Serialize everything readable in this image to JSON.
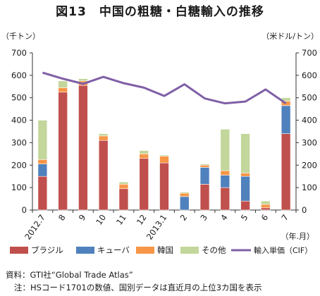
{
  "title": "図13　中国の粗糖・白糖輸入の推移",
  "chart_data": {
    "type": "bar",
    "stacked": true,
    "categories": [
      "2012.7",
      "8",
      "9",
      "10",
      "11",
      "12",
      "2013.1",
      "2",
      "3",
      "4",
      "5",
      "6",
      "7"
    ],
    "x_unit_label": "（年.月）",
    "left_axis": {
      "label": "（千トン）",
      "min": 0,
      "max": 700,
      "ticks": [
        0,
        100,
        200,
        300,
        400,
        500,
        600,
        700
      ]
    },
    "right_axis": {
      "label": "（米ドル/トン）",
      "min": 0,
      "max": 700,
      "ticks": [
        0,
        100,
        200,
        300,
        400,
        500,
        600,
        700
      ]
    },
    "series": [
      {
        "name": "ブラジル",
        "color": "#c0504d",
        "values": [
          150,
          525,
          555,
          310,
          95,
          230,
          210,
          0,
          115,
          100,
          40,
          10,
          340
        ]
      },
      {
        "name": "キューバ",
        "color": "#4f81bd",
        "values": [
          55,
          0,
          0,
          0,
          0,
          0,
          0,
          60,
          75,
          55,
          110,
          0,
          125
        ]
      },
      {
        "name": "韓国",
        "color": "#f79646",
        "values": [
          20,
          20,
          20,
          20,
          20,
          20,
          30,
          15,
          10,
          20,
          15,
          15,
          20
        ]
      },
      {
        "name": "その他",
        "color": "#c3d69b",
        "values": [
          175,
          30,
          10,
          10,
          10,
          15,
          5,
          5,
          5,
          185,
          175,
          15,
          15
        ]
      }
    ],
    "line_series": {
      "name": "輸入単価（CIF）",
      "color": "#7f5fa6",
      "axis": "right",
      "values": [
        612,
        585,
        562,
        593,
        565,
        545,
        508,
        560,
        497,
        475,
        483,
        537,
        475
      ]
    },
    "legend_position": "bottom",
    "grid": false
  },
  "source_lines": [
    "資料：GTI社“Global Trade Atlas”",
    "注：HSコード1701の数値、国別データは直近月の上位3カ国を表示"
  ]
}
